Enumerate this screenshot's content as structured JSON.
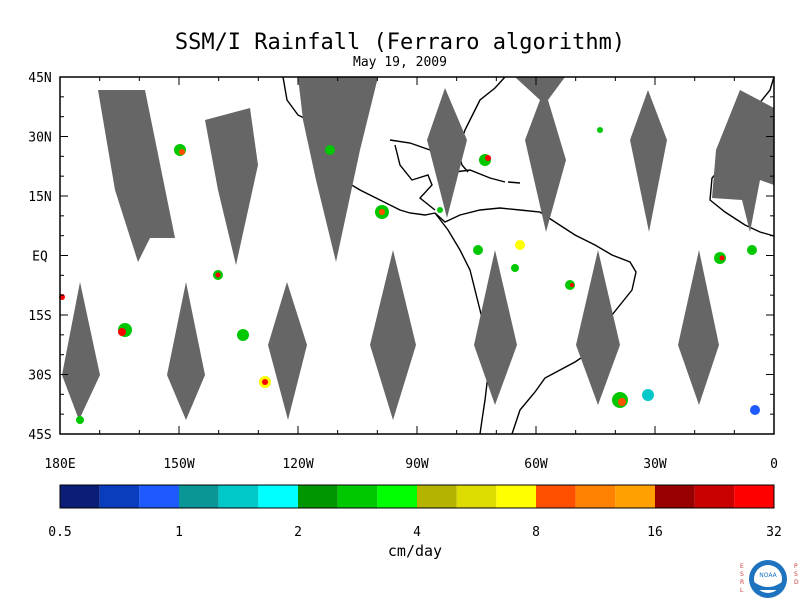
{
  "title": "SSM/I Rainfall (Ferraro algorithm)",
  "date": "May 19, 2009",
  "map": {
    "lon_range": [
      -180,
      0
    ],
    "lat_range": [
      -45,
      45
    ],
    "lat_labels": [
      "45N",
      "30N",
      "15N",
      "EQ",
      "15S",
      "30S",
      "45S"
    ],
    "lon_labels": [
      "180E",
      "150W",
      "120W",
      "90W",
      "60W",
      "30W",
      "0"
    ],
    "colors": {
      "swath_gap": "#666666",
      "coast": "#000000",
      "frame": "#000000"
    }
  },
  "colorbar": {
    "colors": [
      "#0a1e78",
      "#0a3cbe",
      "#1e5aff",
      "#0a9696",
      "#00c8c8",
      "#00ffff",
      "#009600",
      "#00c800",
      "#00ff00",
      "#b4b400",
      "#dcdc00",
      "#ffff00",
      "#ff5000",
      "#ff8200",
      "#ffa000",
      "#960000",
      "#c80000",
      "#ff0000"
    ],
    "tick_labels": [
      "0.5",
      "1",
      "2",
      "4",
      "8",
      "16",
      "32"
    ],
    "unit": "cm/day"
  },
  "logo": {
    "left_text": "ESRL",
    "right_text": "PSD",
    "center_text": "NOAA"
  }
}
